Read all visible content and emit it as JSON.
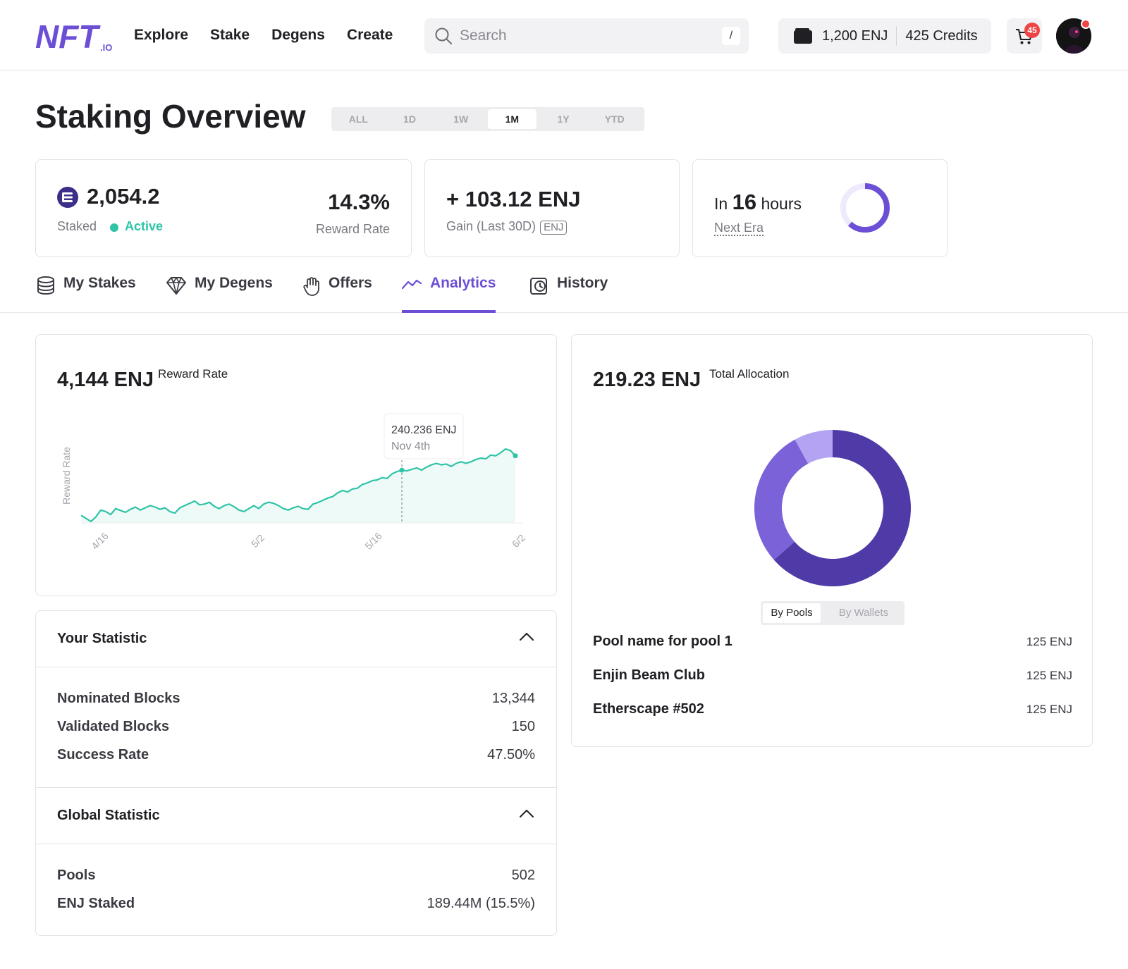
{
  "header": {
    "logo_alt": "NFT.io",
    "nav": [
      "Explore",
      "Stake",
      "Degens",
      "Create"
    ],
    "search": {
      "placeholder": "Search",
      "shortcut": "/"
    },
    "wallet": {
      "enj": "1,200 ENJ",
      "credits": "425 Credits"
    },
    "cart": {
      "count": "45"
    }
  },
  "page": {
    "title": "Staking Overview",
    "ranges": [
      "ALL",
      "1D",
      "1W",
      "1M",
      "1Y",
      "YTD"
    ],
    "active_range": "1M"
  },
  "cards": {
    "staked": {
      "amount": "2,054.2",
      "label": "Staked",
      "status": "Active",
      "rate": "14.3%",
      "rate_label": "Reward Rate"
    },
    "gain": {
      "value": "+ 103.12 ENJ",
      "label": "Gain (Last 30D)",
      "tag": "ENJ"
    },
    "era": {
      "prefix": "In",
      "hours": "16",
      "suffix": "hours",
      "label": "Next Era",
      "progress": 0.62
    }
  },
  "tabs": [
    {
      "label": "My Stakes",
      "icon": "coins-stack-icon"
    },
    {
      "label": "My Degens",
      "icon": "diamond-icon"
    },
    {
      "label": "Offers",
      "icon": "hand-icon"
    },
    {
      "label": "Analytics",
      "icon": "trend-line-icon",
      "active": true
    },
    {
      "label": "History",
      "icon": "history-icon"
    }
  ],
  "reward_chart": {
    "headline": "4,144 ENJ",
    "headline_label": "Reward Rate",
    "tooltip": {
      "value": "240.236 ENJ",
      "date": "Nov 4th"
    }
  },
  "chart_data": {
    "type": "area",
    "ylabel": "Reward Rate",
    "x_tick_labels": [
      "4/16",
      "5/2",
      "5/16",
      "6/2"
    ],
    "values": [
      120,
      112,
      104,
      116,
      134,
      130,
      122,
      138,
      133,
      128,
      136,
      142,
      134,
      140,
      146,
      142,
      136,
      140,
      130,
      126,
      140,
      146,
      152,
      158,
      148,
      150,
      155,
      144,
      138,
      146,
      150,
      143,
      134,
      130,
      138,
      146,
      138,
      150,
      155,
      152,
      146,
      138,
      134,
      140,
      144,
      138,
      136,
      150,
      154,
      160,
      166,
      170,
      180,
      186,
      182,
      190,
      192,
      202,
      206,
      212,
      214,
      220,
      218,
      230,
      236,
      240,
      238,
      242,
      246,
      240,
      248,
      254,
      258,
      254,
      256,
      250,
      258,
      262,
      258,
      262,
      268,
      272,
      270,
      280,
      278,
      286,
      296,
      292,
      278
    ],
    "colors": {
      "line": "#2ec4a6",
      "fill": "#eefaf7"
    }
  },
  "your_statistic": {
    "title": "Your Statistic",
    "rows": [
      {
        "label": "Nominated Blocks",
        "value": "13,344"
      },
      {
        "label": "Validated Blocks",
        "value": "150"
      },
      {
        "label": "Success Rate",
        "value": "47.50%"
      }
    ]
  },
  "global_statistic": {
    "title": "Global Statistic",
    "rows": [
      {
        "label": "Pools",
        "value": "502"
      },
      {
        "label": "ENJ Staked",
        "value": "189.44M (15.5%)"
      }
    ]
  },
  "allocation": {
    "headline": "219.23 ENJ",
    "headline_label": "Total Allocation",
    "toggle": [
      "By Pools",
      "By Wallets"
    ],
    "segments": [
      {
        "value": 0.635,
        "color": "#4f3aa8"
      },
      {
        "value": 0.285,
        "color": "#7b62d8"
      },
      {
        "value": 0.08,
        "color": "#b3a3f2"
      }
    ],
    "pools": [
      {
        "name": "Pool name for pool 1",
        "value": "125 ENJ"
      },
      {
        "name": "Enjin Beam Club",
        "value": "125 ENJ"
      },
      {
        "name": "Etherscape #502",
        "value": "125 ENJ"
      }
    ]
  },
  "colors": {
    "accent": "#6d4fd6",
    "teal": "#2ec4a6",
    "alert": "#ef4444"
  }
}
